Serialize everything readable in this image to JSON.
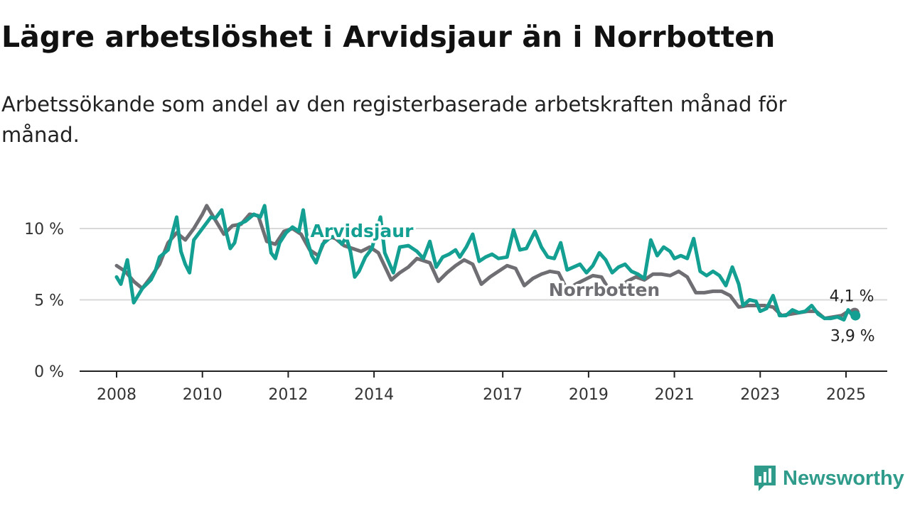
{
  "title": "Lägre arbetslöshet i Arvidsjaur än i Norrbotten",
  "subtitle": "Arbetssökande som andel av den registerbaserade arbetskraften månad för månad.",
  "brand": "Newsworthy",
  "colors": {
    "arvidsjaur": "#139f92",
    "norrbotten": "#6f6e73",
    "grid": "#d9d9d9",
    "axis": "#222222",
    "brand": "#2f9b8a"
  },
  "chart_data": {
    "type": "line",
    "xlabel": "",
    "ylabel": "",
    "xlim": [
      2007.9,
      2026.0
    ],
    "ylim": [
      0,
      12
    ],
    "grid": true,
    "x_ticks": [
      {
        "value": 2008,
        "label": "2008"
      },
      {
        "value": 2010,
        "label": "2010"
      },
      {
        "value": 2012,
        "label": "2012"
      },
      {
        "value": 2014,
        "label": "2014"
      },
      {
        "value": 2017,
        "label": "2017"
      },
      {
        "value": 2019,
        "label": "2019"
      },
      {
        "value": 2021,
        "label": "2021"
      },
      {
        "value": 2023,
        "label": "2023"
      },
      {
        "value": 2025,
        "label": "2025"
      }
    ],
    "y_ticks": [
      {
        "value": 0,
        "label": "0 %"
      },
      {
        "value": 5,
        "label": "5 %"
      },
      {
        "value": 10,
        "label": "10 %"
      }
    ],
    "series": [
      {
        "name": "Norrbotten",
        "color": "#6f6e73",
        "end_label": "4,1 %",
        "points": [
          [
            2008.0,
            7.4
          ],
          [
            2008.2,
            7.0
          ],
          [
            2008.4,
            6.3
          ],
          [
            2008.6,
            5.8
          ],
          [
            2008.8,
            6.6
          ],
          [
            2009.0,
            7.5
          ],
          [
            2009.2,
            9.0
          ],
          [
            2009.4,
            9.7
          ],
          [
            2009.6,
            9.2
          ],
          [
            2009.8,
            10.0
          ],
          [
            2010.0,
            11.0
          ],
          [
            2010.1,
            11.6
          ],
          [
            2010.3,
            10.6
          ],
          [
            2010.5,
            9.6
          ],
          [
            2010.7,
            10.2
          ],
          [
            2010.9,
            10.3
          ],
          [
            2011.1,
            11.0
          ],
          [
            2011.3,
            10.9
          ],
          [
            2011.5,
            9.1
          ],
          [
            2011.7,
            8.9
          ],
          [
            2011.9,
            9.8
          ],
          [
            2012.1,
            10.0
          ],
          [
            2012.3,
            9.6
          ],
          [
            2012.5,
            8.5
          ],
          [
            2012.7,
            8.1
          ],
          [
            2012.9,
            9.5
          ],
          [
            2013.1,
            9.3
          ],
          [
            2013.3,
            8.8
          ],
          [
            2013.5,
            8.6
          ],
          [
            2013.7,
            8.4
          ],
          [
            2013.9,
            8.7
          ],
          [
            2014.1,
            8.3
          ],
          [
            2014.4,
            6.4
          ],
          [
            2014.6,
            6.9
          ],
          [
            2014.8,
            7.3
          ],
          [
            2015.0,
            7.9
          ],
          [
            2015.3,
            7.6
          ],
          [
            2015.5,
            6.3
          ],
          [
            2015.7,
            6.9
          ],
          [
            2015.9,
            7.4
          ],
          [
            2016.1,
            7.8
          ],
          [
            2016.3,
            7.5
          ],
          [
            2016.5,
            6.1
          ],
          [
            2016.7,
            6.6
          ],
          [
            2016.9,
            7.0
          ],
          [
            2017.1,
            7.4
          ],
          [
            2017.3,
            7.2
          ],
          [
            2017.5,
            6.0
          ],
          [
            2017.7,
            6.5
          ],
          [
            2017.9,
            6.8
          ],
          [
            2018.1,
            7.0
          ],
          [
            2018.3,
            6.9
          ],
          [
            2018.5,
            5.7
          ],
          [
            2018.7,
            6.1
          ],
          [
            2018.9,
            6.4
          ],
          [
            2019.1,
            6.7
          ],
          [
            2019.3,
            6.6
          ],
          [
            2019.5,
            5.6
          ],
          [
            2019.7,
            5.9
          ],
          [
            2019.9,
            6.3
          ],
          [
            2020.1,
            6.6
          ],
          [
            2020.3,
            6.4
          ],
          [
            2020.5,
            6.8
          ],
          [
            2020.7,
            6.8
          ],
          [
            2020.9,
            6.7
          ],
          [
            2021.1,
            7.0
          ],
          [
            2021.3,
            6.6
          ],
          [
            2021.5,
            5.5
          ],
          [
            2021.7,
            5.5
          ],
          [
            2021.9,
            5.6
          ],
          [
            2022.1,
            5.6
          ],
          [
            2022.3,
            5.3
          ],
          [
            2022.5,
            4.5
          ],
          [
            2022.7,
            4.6
          ],
          [
            2022.9,
            4.6
          ],
          [
            2023.1,
            4.6
          ],
          [
            2023.3,
            4.5
          ],
          [
            2023.5,
            3.9
          ],
          [
            2023.7,
            4.0
          ],
          [
            2023.9,
            4.1
          ],
          [
            2024.1,
            4.2
          ],
          [
            2024.3,
            4.2
          ],
          [
            2024.5,
            3.7
          ],
          [
            2024.7,
            3.8
          ],
          [
            2024.9,
            3.9
          ],
          [
            2025.0,
            4.1
          ],
          [
            2025.1,
            4.2
          ],
          [
            2025.2,
            4.1
          ]
        ]
      },
      {
        "name": "Arvidsjaur",
        "color": "#139f92",
        "end_label": "3,9 %",
        "points": [
          [
            2008.0,
            6.6
          ],
          [
            2008.1,
            6.1
          ],
          [
            2008.25,
            7.8
          ],
          [
            2008.4,
            4.8
          ],
          [
            2008.6,
            5.8
          ],
          [
            2008.8,
            6.4
          ],
          [
            2008.9,
            7.0
          ],
          [
            2009.0,
            8.0
          ],
          [
            2009.2,
            8.5
          ],
          [
            2009.4,
            10.8
          ],
          [
            2009.5,
            8.4
          ],
          [
            2009.6,
            7.5
          ],
          [
            2009.7,
            6.9
          ],
          [
            2009.8,
            9.2
          ],
          [
            2010.0,
            10.0
          ],
          [
            2010.2,
            10.8
          ],
          [
            2010.3,
            10.7
          ],
          [
            2010.45,
            11.3
          ],
          [
            2010.55,
            9.8
          ],
          [
            2010.65,
            8.6
          ],
          [
            2010.75,
            9.0
          ],
          [
            2010.85,
            10.3
          ],
          [
            2011.0,
            10.5
          ],
          [
            2011.2,
            11.0
          ],
          [
            2011.35,
            10.8
          ],
          [
            2011.45,
            11.6
          ],
          [
            2011.6,
            8.3
          ],
          [
            2011.7,
            7.9
          ],
          [
            2011.8,
            9.0
          ],
          [
            2011.95,
            9.7
          ],
          [
            2012.1,
            10.1
          ],
          [
            2012.25,
            9.8
          ],
          [
            2012.35,
            11.3
          ],
          [
            2012.45,
            9.1
          ],
          [
            2012.55,
            8.1
          ],
          [
            2012.65,
            7.6
          ],
          [
            2012.8,
            8.9
          ],
          [
            2012.95,
            9.3
          ],
          [
            2013.1,
            9.5
          ],
          [
            2013.25,
            8.9
          ],
          [
            2013.35,
            9.4
          ],
          [
            2013.45,
            8.4
          ],
          [
            2013.55,
            6.6
          ],
          [
            2013.65,
            7.0
          ],
          [
            2013.8,
            8.0
          ],
          [
            2013.95,
            8.6
          ],
          [
            2014.15,
            10.8
          ],
          [
            2014.25,
            8.3
          ],
          [
            2014.45,
            6.9
          ],
          [
            2014.6,
            8.7
          ],
          [
            2014.8,
            8.8
          ],
          [
            2015.0,
            8.4
          ],
          [
            2015.15,
            7.9
          ],
          [
            2015.3,
            9.1
          ],
          [
            2015.45,
            7.3
          ],
          [
            2015.6,
            8.0
          ],
          [
            2015.75,
            8.2
          ],
          [
            2015.9,
            8.5
          ],
          [
            2016.0,
            8.0
          ],
          [
            2016.15,
            8.7
          ],
          [
            2016.3,
            9.6
          ],
          [
            2016.45,
            7.7
          ],
          [
            2016.6,
            8.0
          ],
          [
            2016.75,
            8.2
          ],
          [
            2016.9,
            7.9
          ],
          [
            2017.1,
            8.0
          ],
          [
            2017.25,
            9.9
          ],
          [
            2017.4,
            8.5
          ],
          [
            2017.55,
            8.6
          ],
          [
            2017.75,
            9.8
          ],
          [
            2017.9,
            8.7
          ],
          [
            2018.05,
            8.0
          ],
          [
            2018.2,
            7.9
          ],
          [
            2018.35,
            9.0
          ],
          [
            2018.5,
            7.1
          ],
          [
            2018.65,
            7.3
          ],
          [
            2018.8,
            7.5
          ],
          [
            2018.95,
            6.9
          ],
          [
            2019.1,
            7.4
          ],
          [
            2019.25,
            8.3
          ],
          [
            2019.4,
            7.8
          ],
          [
            2019.55,
            6.9
          ],
          [
            2019.7,
            7.3
          ],
          [
            2019.85,
            7.5
          ],
          [
            2020.0,
            7.0
          ],
          [
            2020.15,
            6.8
          ],
          [
            2020.3,
            6.5
          ],
          [
            2020.45,
            9.2
          ],
          [
            2020.6,
            8.1
          ],
          [
            2020.75,
            8.7
          ],
          [
            2020.9,
            8.4
          ],
          [
            2021.0,
            7.9
          ],
          [
            2021.15,
            8.1
          ],
          [
            2021.3,
            7.9
          ],
          [
            2021.45,
            9.3
          ],
          [
            2021.6,
            7.0
          ],
          [
            2021.75,
            6.7
          ],
          [
            2021.9,
            7.0
          ],
          [
            2022.05,
            6.7
          ],
          [
            2022.2,
            6.0
          ],
          [
            2022.35,
            7.3
          ],
          [
            2022.5,
            6.1
          ],
          [
            2022.6,
            4.6
          ],
          [
            2022.75,
            5.0
          ],
          [
            2022.9,
            4.9
          ],
          [
            2023.0,
            4.2
          ],
          [
            2023.15,
            4.4
          ],
          [
            2023.3,
            5.3
          ],
          [
            2023.45,
            3.9
          ],
          [
            2023.6,
            3.9
          ],
          [
            2023.75,
            4.3
          ],
          [
            2023.9,
            4.1
          ],
          [
            2024.05,
            4.2
          ],
          [
            2024.2,
            4.6
          ],
          [
            2024.35,
            4.0
          ],
          [
            2024.5,
            3.7
          ],
          [
            2024.65,
            3.7
          ],
          [
            2024.8,
            3.8
          ],
          [
            2024.95,
            3.6
          ],
          [
            2025.05,
            4.3
          ],
          [
            2025.15,
            3.9
          ],
          [
            2025.22,
            3.9
          ]
        ]
      }
    ]
  }
}
